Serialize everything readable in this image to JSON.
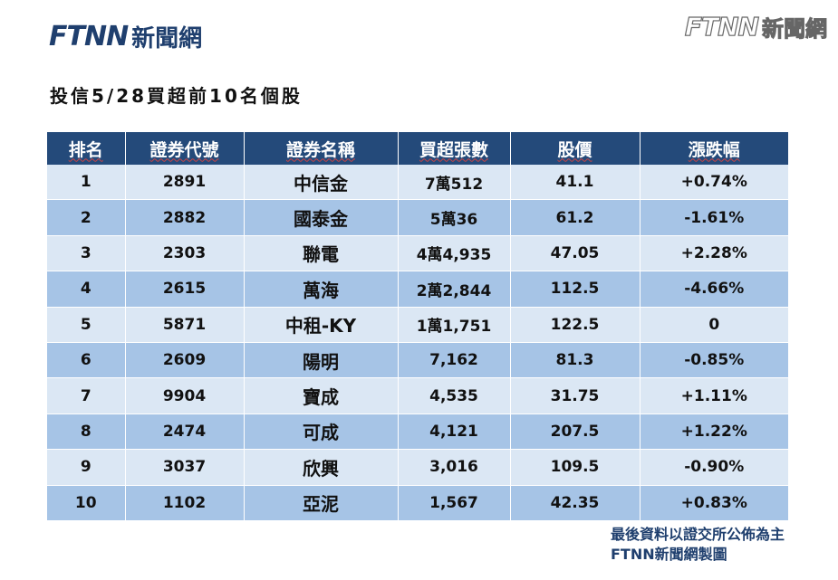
{
  "logo": {
    "mark": "FTNN",
    "name": "新聞網"
  },
  "watermark": {
    "mark": "FTNN",
    "name": "新聞網"
  },
  "title": "投信5/28買超前10名個股",
  "table": {
    "headers": [
      "排名",
      "證券代號",
      "證券名稱",
      "買超張數",
      "股價",
      "漲跌幅"
    ],
    "rows": [
      [
        "1",
        "2891",
        "中信金",
        "7萬512",
        "41.1",
        "+0.74%"
      ],
      [
        "2",
        "2882",
        "國泰金",
        "5萬36",
        "61.2",
        "-1.61%"
      ],
      [
        "3",
        "2303",
        "聯電",
        "4萬4,935",
        "47.05",
        "+2.28%"
      ],
      [
        "4",
        "2615",
        "萬海",
        "2萬2,844",
        "112.5",
        "-4.66%"
      ],
      [
        "5",
        "5871",
        "中租-KY",
        "1萬1,751",
        "122.5",
        "0"
      ],
      [
        "6",
        "2609",
        "陽明",
        "7,162",
        "81.3",
        "-0.85%"
      ],
      [
        "7",
        "9904",
        "寶成",
        "4,535",
        "31.75",
        "+1.11%"
      ],
      [
        "8",
        "2474",
        "可成",
        "4,121",
        "207.5",
        "+1.22%"
      ],
      [
        "9",
        "3037",
        "欣興",
        "3,016",
        "109.5",
        "-0.90%"
      ],
      [
        "10",
        "1102",
        "亞泥",
        "1,567",
        "42.35",
        "+0.83%"
      ]
    ]
  },
  "footer": {
    "line1": "最後資料以證交所公佈為主",
    "line2": "FTNN新聞網製圖"
  },
  "colors": {
    "header_bg": "#244a7a",
    "row_light": "#dbe7f4",
    "row_dark": "#a6c4e6",
    "brand": "#1f3f6e",
    "accent": "#f0a030"
  }
}
